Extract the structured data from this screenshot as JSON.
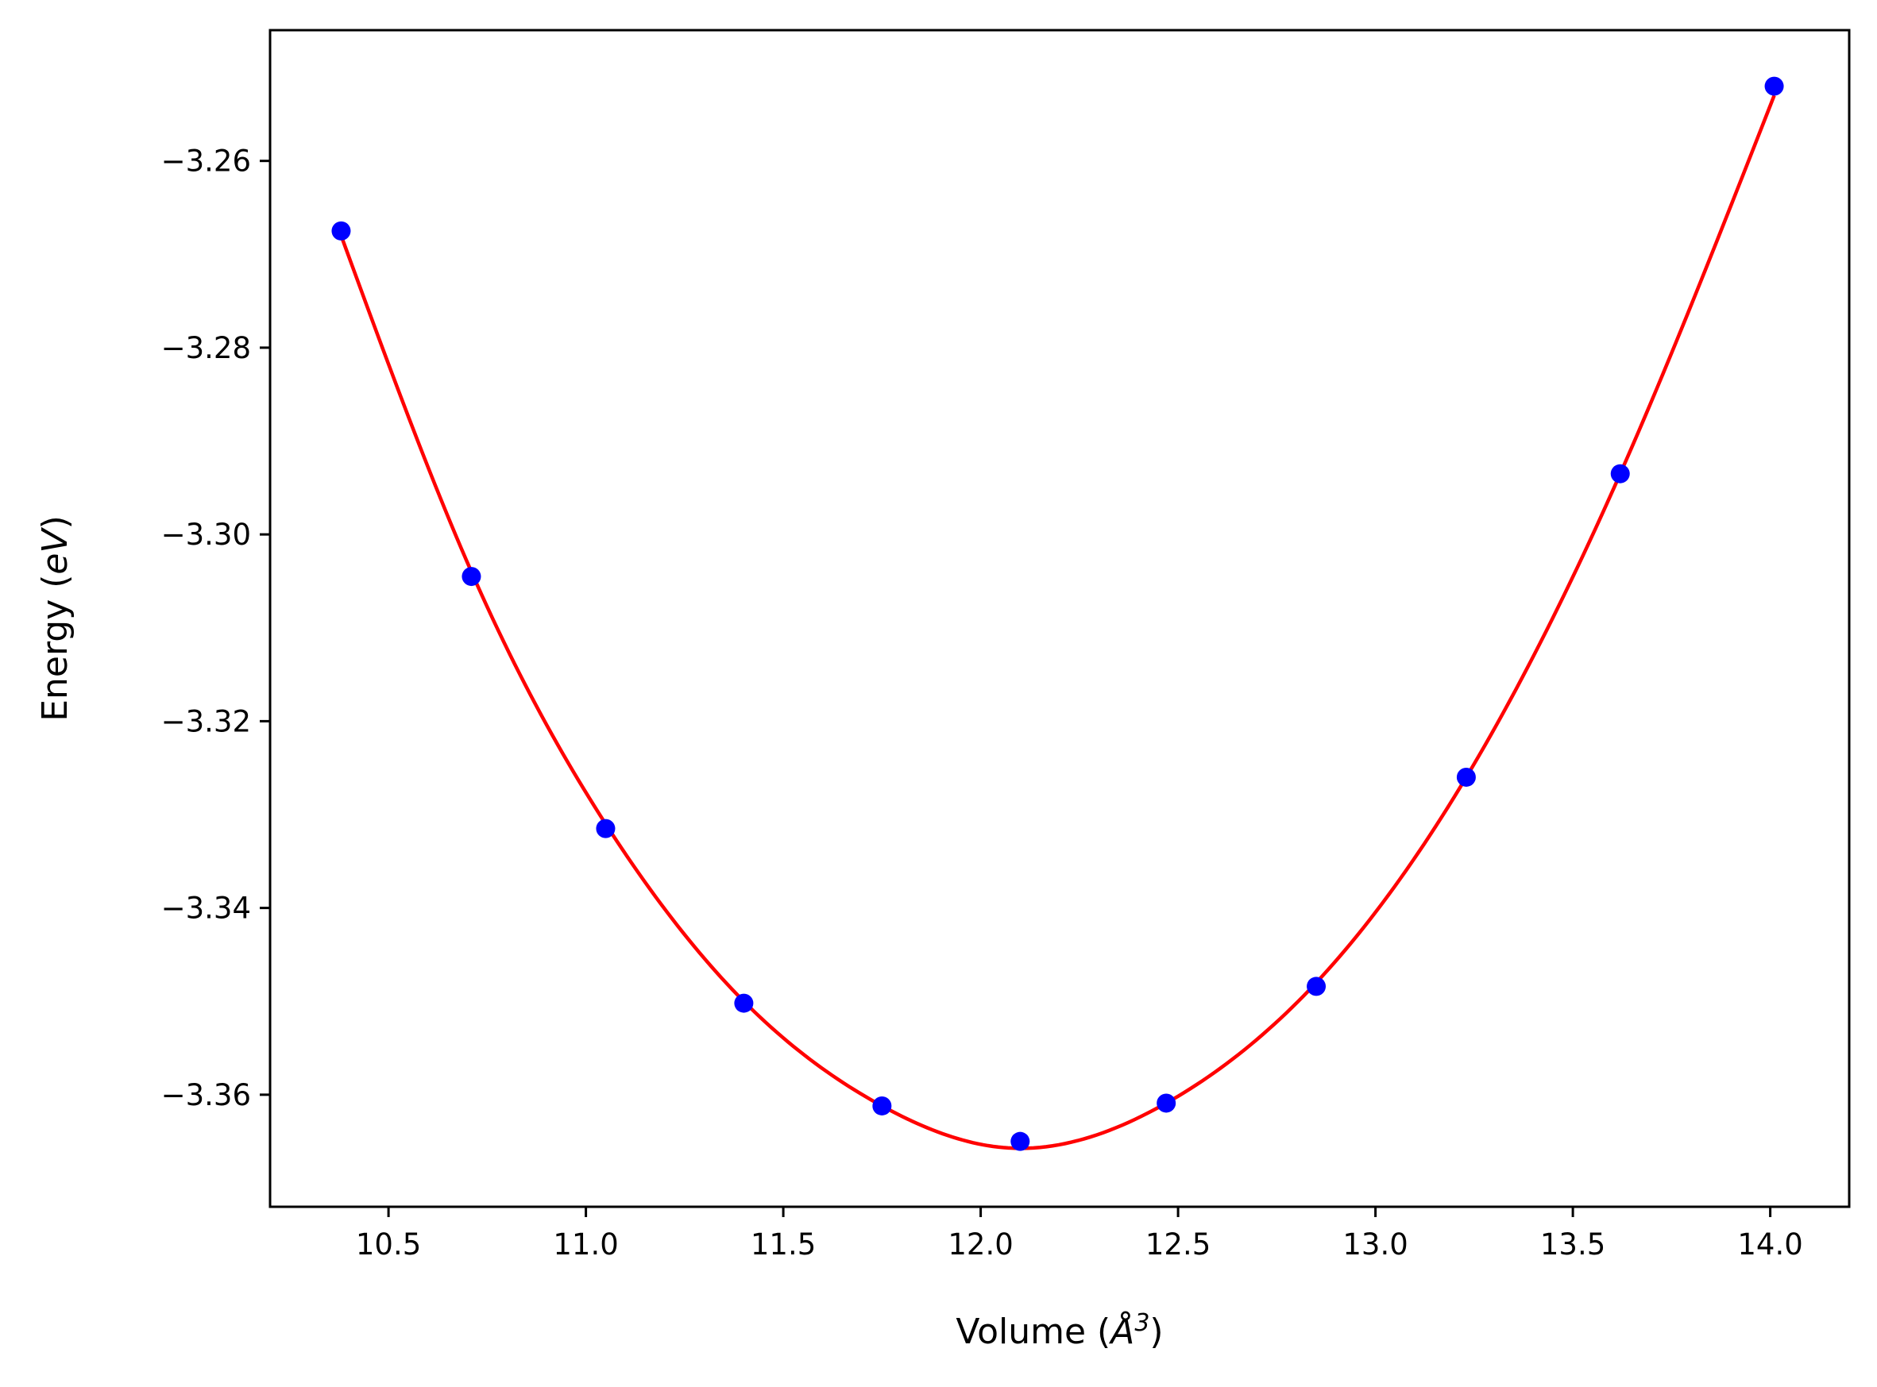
{
  "chart_data": {
    "type": "scatter",
    "title": "",
    "xlabel": "Volume (",
    "xlabel_symbol": "Å",
    "xlabel_exponent": "3",
    "xlabel_close": ")",
    "ylabel": "Energy (",
    "ylabel_unit": "eV",
    "ylabel_close": ")",
    "xlim": [
      10.2,
      14.2
    ],
    "ylim": [
      -3.372,
      -3.246
    ],
    "xticks": [
      10.5,
      11.0,
      11.5,
      12.0,
      12.5,
      13.0,
      13.5,
      14.0
    ],
    "xtick_labels": [
      "10.5",
      "11.0",
      "11.5",
      "12.0",
      "12.5",
      "13.0",
      "13.5",
      "14.0"
    ],
    "yticks": [
      -3.26,
      -3.28,
      -3.3,
      -3.32,
      -3.34,
      -3.36
    ],
    "ytick_labels": [
      "−3.26",
      "−3.28",
      "−3.30",
      "−3.32",
      "−3.34",
      "−3.36"
    ],
    "grid": false,
    "points": {
      "color": "#0000ff",
      "x": [
        10.38,
        10.71,
        11.05,
        11.4,
        11.75,
        12.1,
        12.47,
        12.85,
        13.23,
        13.62,
        14.01
      ],
      "y": [
        -3.2675,
        -3.3045,
        -3.3315,
        -3.3502,
        -3.3612,
        -3.365,
        -3.3609,
        -3.3484,
        -3.326,
        -3.2935,
        -3.252
      ]
    },
    "fit_curve": {
      "color": "#ff0000",
      "x": [
        10.38,
        10.71,
        11.05,
        11.4,
        11.75,
        12.07,
        12.47,
        12.85,
        13.23,
        13.62,
        14.01
      ],
      "y": [
        -3.268,
        -3.304,
        -3.331,
        -3.35,
        -3.3612,
        -3.3657,
        -3.3609,
        -3.348,
        -3.326,
        -3.2935,
        -3.253
      ]
    }
  }
}
